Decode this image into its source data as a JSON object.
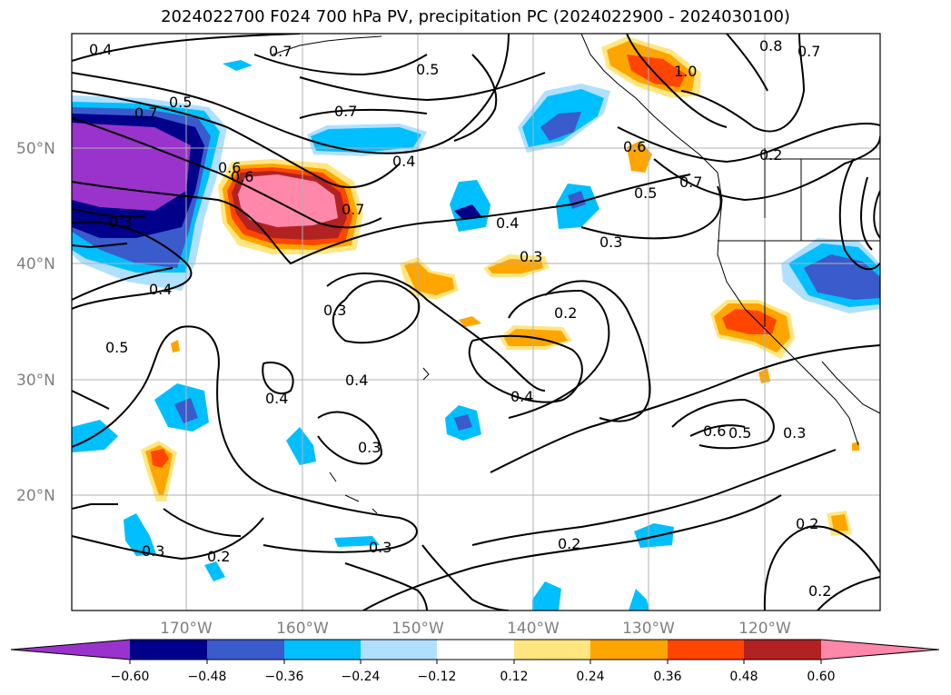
{
  "title": "2024022700 F024 700 hPa PV, precipitation PC (2024022900 - 2024030100)",
  "lat_ticks": [
    "50°N",
    "40°N",
    "30°N",
    "20°N"
  ],
  "lon_ticks": [
    "170°W",
    "160°W",
    "150°W",
    "140°W",
    "130°W",
    "120°W"
  ],
  "contour_labels": [
    "0.4",
    "0.5",
    "0.7",
    "0.6",
    "0.5",
    "0.7",
    "0.4",
    "0.6",
    "0.7",
    "0.3",
    "0.4",
    "0.4",
    "0.3",
    "0.3",
    "0.6",
    "0.5",
    "0.7",
    "0.3",
    "0.2",
    "0.5",
    "0.4",
    "0.3",
    "0.4",
    "0.3",
    "0.4",
    "0.2",
    "0.3",
    "0.2",
    "0.2",
    "0.6",
    "0.5",
    "0.3",
    "1.0",
    "0.8",
    "0.7",
    "0.2",
    "0.2",
    "0.7"
  ],
  "colorbar": {
    "ticks": [
      "−0.60",
      "−0.48",
      "−0.36",
      "−0.24",
      "−0.12",
      "0.12",
      "0.24",
      "0.36",
      "0.48",
      "0.60"
    ],
    "colors": [
      "#9933cc",
      "#00008b",
      "#3a5bcc",
      "#00bfff",
      "#b0e0ff",
      "#ffffff",
      "#ffe680",
      "#ffa500",
      "#ff4500",
      "#b22222",
      "#ff88aa"
    ]
  },
  "shading_colors": {
    "neg_060": "#9933cc",
    "neg_048": "#00008b",
    "neg_036": "#3a5bcc",
    "neg_024": "#00bfff",
    "neg_012": "#b0e0ff",
    "pos_012": "#ffe680",
    "pos_024": "#ffa500",
    "pos_036": "#ff4500",
    "pos_048": "#b22222",
    "pos_060": "#ff88aa"
  }
}
